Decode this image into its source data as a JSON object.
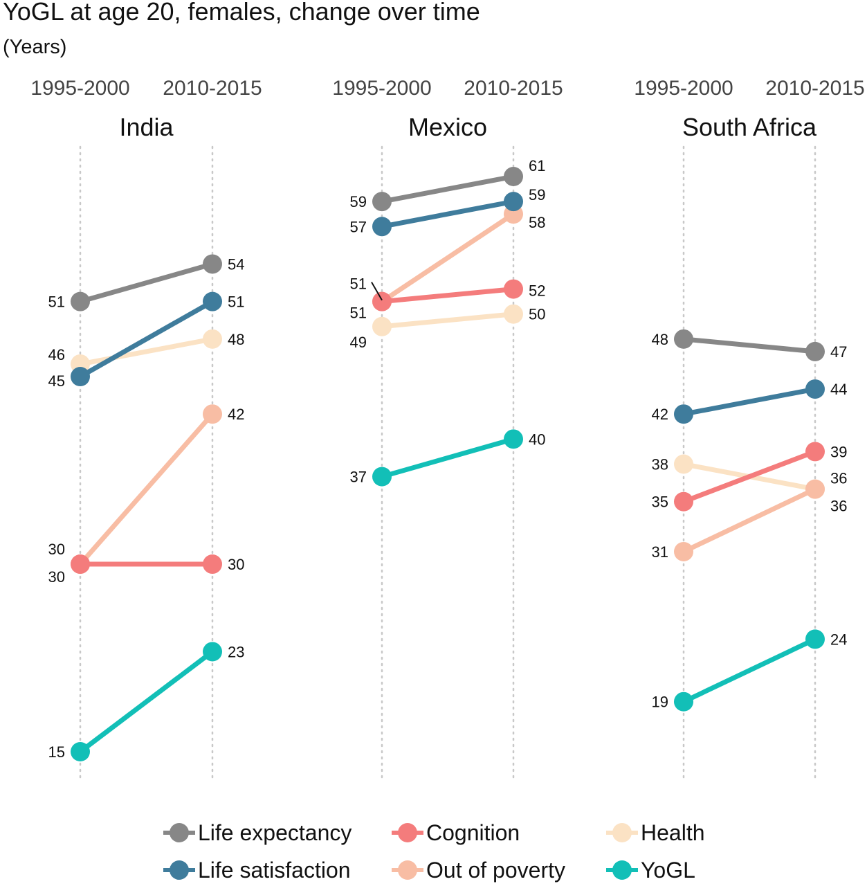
{
  "title": "YoGL at age 20, females, change over time",
  "subtitle": "(Years)",
  "chart_data": {
    "type": "line",
    "periods": [
      "1995-2000",
      "2010-2015"
    ],
    "series_info": [
      {
        "name": "Life expectancy",
        "color": "#878787"
      },
      {
        "name": "Life satisfaction",
        "color": "#3f7c9c"
      },
      {
        "name": "Cognition",
        "color": "#f47c7c"
      },
      {
        "name": "Out of poverty",
        "color": "#f8bda4"
      },
      {
        "name": "Health",
        "color": "#fbe2c4"
      },
      {
        "name": "YoGL",
        "color": "#12bfb7"
      }
    ],
    "panels": [
      {
        "country": "India",
        "series": [
          {
            "name": "Life expectancy",
            "values": [
              51,
              54
            ],
            "labels": [
              "51",
              "54"
            ]
          },
          {
            "name": "Life satisfaction",
            "values": [
              45,
              51
            ],
            "labels": [
              "45",
              "51"
            ]
          },
          {
            "name": "Cognition",
            "values": [
              30,
              30
            ],
            "labels": [
              "30",
              "30"
            ]
          },
          {
            "name": "Out of poverty",
            "values": [
              30,
              42
            ],
            "labels": [
              "30",
              "42"
            ]
          },
          {
            "name": "Health",
            "values": [
              46,
              48
            ],
            "labels": [
              "46",
              "48"
            ]
          },
          {
            "name": "YoGL",
            "values": [
              15,
              23
            ],
            "labels": [
              "15",
              "23"
            ]
          }
        ]
      },
      {
        "country": "Mexico",
        "series": [
          {
            "name": "Life expectancy",
            "values": [
              59,
              61
            ],
            "labels": [
              "59",
              "61"
            ]
          },
          {
            "name": "Life satisfaction",
            "values": [
              57,
              59
            ],
            "labels": [
              "57",
              "59"
            ]
          },
          {
            "name": "Cognition",
            "values": [
              51,
              52
            ],
            "labels": [
              "51",
              "52"
            ]
          },
          {
            "name": "Out of poverty",
            "values": [
              51,
              58
            ],
            "labels": [
              "51",
              "58"
            ]
          },
          {
            "name": "Health",
            "values": [
              49,
              50
            ],
            "labels": [
              "49",
              "50"
            ]
          },
          {
            "name": "YoGL",
            "values": [
              37,
              40
            ],
            "labels": [
              "37",
              "40"
            ]
          }
        ]
      },
      {
        "country": "South Africa",
        "series": [
          {
            "name": "Life expectancy",
            "values": [
              48,
              47
            ],
            "labels": [
              "48",
              "47"
            ]
          },
          {
            "name": "Life satisfaction",
            "values": [
              42,
              44
            ],
            "labels": [
              "42",
              "44"
            ]
          },
          {
            "name": "Cognition",
            "values": [
              35,
              39
            ],
            "labels": [
              "35",
              "39"
            ]
          },
          {
            "name": "Out of poverty",
            "values": [
              31,
              36
            ],
            "labels": [
              "31",
              "36"
            ]
          },
          {
            "name": "Health",
            "values": [
              38,
              36
            ],
            "labels": [
              "38",
              "36"
            ]
          },
          {
            "name": "YoGL",
            "values": [
              19,
              24
            ],
            "labels": [
              "19",
              "24"
            ]
          }
        ]
      }
    ],
    "ylim": [
      15,
      61
    ],
    "grid": "vertical dotted lines at each period",
    "legend_position": "bottom"
  },
  "legend": [
    {
      "label": "Life expectancy",
      "color": "#878787"
    },
    {
      "label": "Cognition",
      "color": "#f47c7c"
    },
    {
      "label": "Health",
      "color": "#fbe2c4"
    },
    {
      "label": "Life satisfaction",
      "color": "#3f7c9c"
    },
    {
      "label": "Out of poverty",
      "color": "#f8bda4"
    },
    {
      "label": "YoGL",
      "color": "#12bfb7"
    }
  ]
}
